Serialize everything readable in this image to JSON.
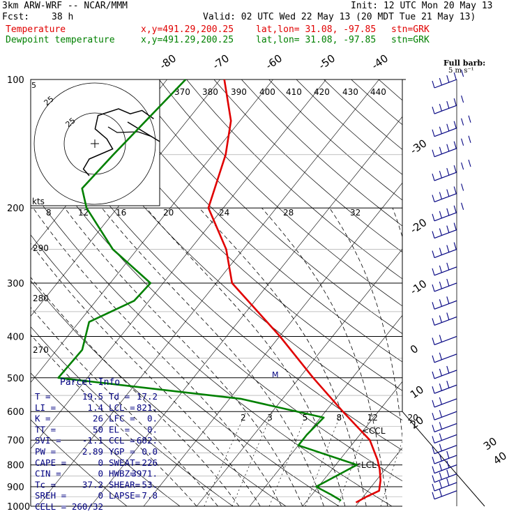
{
  "header": {
    "title": "3km ARW-WRF -- NCAR/MMM",
    "init": "Init: 12 UTC Mon 20 May 13",
    "fcst_label": "Fcst:",
    "fcst_value": "38 h",
    "valid": "Valid: 02 UTC Wed 22 May 13 (20 MDT Tue 21 May 13)",
    "legend": [
      {
        "name": "Temperature",
        "color": "#e00000",
        "xy": "x,y=491.29,200.25",
        "latlon": "lat,lon= 31.08, -97.85",
        "stn": "stn=GRK"
      },
      {
        "name": "Dewpoint temperature",
        "color": "#008000",
        "xy": "x,y=491.29,200.25",
        "latlon": "lat,lon= 31.08, -97.85",
        "stn": "stn=GRK"
      }
    ]
  },
  "wind_legend": {
    "title": "Full barb:",
    "value": "5 m s⁻¹"
  },
  "hodograph": {
    "units": "kts",
    "ring_labels": [
      "5",
      "25"
    ]
  },
  "parcel_info": {
    "title": "Parcel Info",
    "rows": [
      [
        "T  =",
        "19.5",
        "Td =",
        "17.2"
      ],
      [
        "LI =",
        "1.4",
        "LCL =",
        "821."
      ],
      [
        "K  =",
        "26",
        "LFC =",
        "0."
      ],
      [
        "TT =",
        "50",
        "EL  =",
        "0."
      ],
      [
        "SVI =",
        "-1.1",
        "CCL =",
        "682."
      ],
      [
        "PW =",
        "2.89",
        "YGP =",
        "0.0"
      ],
      [
        "CAPE =",
        "0",
        "SWEAT=",
        "226"
      ],
      [
        "CIN =",
        "0",
        "HWBZ=",
        "3971."
      ],
      [
        "Tc =",
        "37.2",
        "SHEAR=",
        "53."
      ],
      [
        "SREH =",
        "0",
        "LAPSE=",
        "7.8"
      ],
      [
        "CELL =",
        "260/32",
        "",
        ""
      ]
    ]
  },
  "chart_data": {
    "type": "line",
    "title": "",
    "pressure_ticks": [
      "100",
      "200",
      "300",
      "400",
      "500",
      "600",
      "700",
      "800",
      "900",
      "1000"
    ],
    "isotherm_labels_top": [
      "-80",
      "-70",
      "-60",
      "-50",
      "-40"
    ],
    "isotherm_labels_right": [
      "-30",
      "-20",
      "-10",
      "0",
      "10",
      "20",
      "30",
      "40"
    ],
    "theta_labels_top": [
      "370",
      "380",
      "390",
      "400",
      "410",
      "420",
      "430",
      "440"
    ],
    "theta_labels_left": [
      "290",
      "280",
      "270"
    ],
    "mixing_ratio_labels": [
      "2",
      "3",
      "5",
      "8",
      "12",
      "20"
    ],
    "hodo_speed_labels": [
      "8",
      "12",
      "16",
      "20",
      "24",
      "28",
      "32"
    ],
    "markers": [
      "CCL",
      "LCL",
      "M"
    ],
    "series": [
      {
        "name": "Temperature",
        "color": "#e00000",
        "points": [
          [
            100,
            -69.2
          ],
          [
            125,
            -61.7
          ],
          [
            150,
            -57.6
          ],
          [
            200,
            -52.8
          ],
          [
            250,
            -43.2
          ],
          [
            300,
            -37.0
          ],
          [
            400,
            -19.9
          ],
          [
            500,
            -7.4
          ],
          [
            600,
            3.3
          ],
          [
            700,
            12.7
          ],
          [
            780,
            17.2
          ],
          [
            820,
            19.0
          ],
          [
            870,
            20.8
          ],
          [
            920,
            22.1
          ],
          [
            950,
            20.6
          ],
          [
            980,
            19.5
          ]
        ]
      },
      {
        "name": "Dewpoint temperature",
        "color": "#008000",
        "points": [
          [
            100,
            -76.5
          ],
          [
            150,
            -78.8
          ],
          [
            180,
            -79.6
          ],
          [
            200,
            -75.8
          ],
          [
            250,
            -64.6
          ],
          [
            300,
            -52.4
          ],
          [
            330,
            -52.8
          ],
          [
            370,
            -58.1
          ],
          [
            430,
            -55.2
          ],
          [
            500,
            -55.5
          ],
          [
            560,
            -17.9
          ],
          [
            620,
            0.6
          ],
          [
            680,
            0.0
          ],
          [
            720,
            0.0
          ],
          [
            800,
            14.0
          ],
          [
            900,
            9.6
          ],
          [
            940,
            13.7
          ],
          [
            970,
            16.4
          ]
        ]
      }
    ],
    "wind_barbs": [
      {
        "p": 100,
        "speed_kt": 45
      },
      {
        "p": 115,
        "speed_kt": 50
      },
      {
        "p": 130,
        "speed_kt": 55
      },
      {
        "p": 145,
        "speed_kt": 60
      },
      {
        "p": 165,
        "speed_kt": 55
      },
      {
        "p": 185,
        "speed_kt": 50
      },
      {
        "p": 205,
        "speed_kt": 45
      },
      {
        "p": 225,
        "speed_kt": 40
      },
      {
        "p": 250,
        "speed_kt": 35
      },
      {
        "p": 275,
        "speed_kt": 30
      },
      {
        "p": 300,
        "speed_kt": 30
      },
      {
        "p": 330,
        "speed_kt": 25
      },
      {
        "p": 360,
        "speed_kt": 25
      },
      {
        "p": 400,
        "speed_kt": 20
      },
      {
        "p": 440,
        "speed_kt": 20
      },
      {
        "p": 480,
        "speed_kt": 25
      },
      {
        "p": 520,
        "speed_kt": 25
      },
      {
        "p": 560,
        "speed_kt": 20
      },
      {
        "p": 600,
        "speed_kt": 20
      },
      {
        "p": 640,
        "speed_kt": 15
      },
      {
        "p": 680,
        "speed_kt": 15
      },
      {
        "p": 720,
        "speed_kt": 20
      },
      {
        "p": 760,
        "speed_kt": 25
      },
      {
        "p": 800,
        "speed_kt": 30
      },
      {
        "p": 840,
        "speed_kt": 30
      },
      {
        "p": 880,
        "speed_kt": 25
      },
      {
        "p": 920,
        "speed_kt": 20
      }
    ],
    "hodograph_path": [
      [
        0,
        0
      ],
      [
        -2,
        4
      ],
      [
        0,
        10
      ],
      [
        8,
        16
      ],
      [
        6,
        22
      ],
      [
        2,
        28
      ],
      [
        3,
        36
      ],
      [
        10,
        40
      ],
      [
        14,
        37
      ],
      [
        18,
        39
      ],
      [
        22,
        34
      ]
    ]
  }
}
